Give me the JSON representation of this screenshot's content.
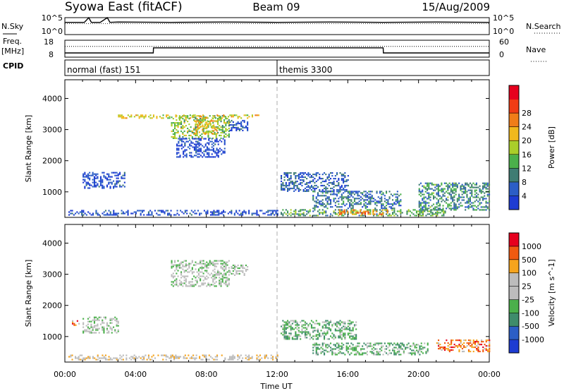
{
  "header": {
    "station": "Syowa East (fitACF)",
    "beam": "Beam 09",
    "date": "15/Aug/2009"
  },
  "panels": {
    "nsky": {
      "left_label": "N.Sky",
      "right_label": "N.Search",
      "tick_top": "10^5",
      "tick_bottom": "10^0"
    },
    "freq": {
      "left_label_line1": "Freq.",
      "left_label_line2": "[MHz]",
      "right_label": "Nave",
      "left_ticks": [
        "18",
        "8"
      ],
      "right_ticks": [
        "60",
        "0"
      ]
    },
    "cpid": {
      "label": "CPID",
      "segments": [
        {
          "time": 0,
          "text": "normal (fast) 151"
        },
        {
          "time": 12,
          "text": "themis 3300"
        }
      ]
    }
  },
  "x_axis": {
    "title": "Time UT",
    "tick_labels": [
      "00:00",
      "04:00",
      "08:00",
      "12:00",
      "16:00",
      "20:00",
      "00:00"
    ]
  },
  "colors": {
    "power": [
      "#1e3cd2",
      "#2c5ec6",
      "#3f7c73",
      "#4bb04b",
      "#aace2a",
      "#f0b81c",
      "#f07d18",
      "#f03c14",
      "#e6001e"
    ],
    "velocity": [
      "#e6001e",
      "#f05a10",
      "#f5a41e",
      "#bcbcbc",
      "#bcbcbc",
      "#4bb04b",
      "#3f8c6c",
      "#2c5ec6",
      "#1e3cd2"
    ],
    "grey_scatter": "#bcbcbc"
  },
  "chart_data": [
    {
      "type": "line",
      "name_panel": "N.Sky / N.Search",
      "x": [
        0,
        1.1,
        1.35,
        1.5,
        2.0,
        2.4,
        2.55,
        3.0,
        6.0,
        9.0,
        12.0,
        15.0,
        18.0,
        21.0,
        24.0
      ],
      "series": [
        {
          "name": "N.Sky",
          "values": [
            3.6,
            3.6,
            5.0,
            3.6,
            3.6,
            5.0,
            3.6,
            3.7,
            3.6,
            3.7,
            3.6,
            3.7,
            3.6,
            3.7,
            3.6
          ]
        },
        {
          "name": "N.Search",
          "values": [
            3.2,
            3.2,
            3.2,
            3.2,
            3.2,
            3.2,
            3.2,
            3.2,
            3.2,
            3.2,
            3.2,
            3.2,
            3.2,
            3.2,
            3.2
          ]
        }
      ],
      "ylim": [
        0,
        5
      ],
      "ylabel": "N.Sky"
    },
    {
      "type": "line",
      "name_panel": "Freq / Nave",
      "x": [
        0,
        5,
        5.01,
        18,
        18.01,
        24
      ],
      "series": [
        {
          "name": "Freq.",
          "values": [
            10.5,
            10.5,
            13.5,
            13.5,
            10.5,
            10.5
          ]
        },
        {
          "name": "Nave",
          "values": [
            38,
            38,
            38,
            38,
            38,
            38
          ]
        }
      ],
      "ylim": [
        8,
        18
      ],
      "ylabel": "Freq. [MHz]"
    },
    {
      "type": "heatmap",
      "name_panel": "Power",
      "colorbar_title": "Power [dB]",
      "colorbar_ticks": [
        4,
        8,
        12,
        16,
        20,
        24,
        28
      ],
      "clim": [
        0,
        32
      ],
      "ylabel": "Slant Range [km]",
      "yticks": [
        1000,
        2000,
        3000,
        4000
      ],
      "ylim": [
        180,
        4600
      ],
      "xlim": [
        0,
        24
      ],
      "regions": [
        {
          "t0": 6.0,
          "t1": 9.3,
          "r0": 2700,
          "r1": 3450,
          "level": 0.45
        },
        {
          "t0": 7.3,
          "t1": 8.6,
          "r0": 2850,
          "r1": 3300,
          "level": 0.62
        },
        {
          "t0": 9.3,
          "t1": 10.3,
          "r0": 2950,
          "r1": 3300,
          "level": 0.1
        },
        {
          "t0": 6.3,
          "t1": 9.0,
          "r0": 2100,
          "r1": 2700,
          "level": 0.08
        },
        {
          "t0": 1.0,
          "t1": 3.4,
          "r0": 1100,
          "r1": 1600,
          "level": 0.1
        },
        {
          "t0": 0.2,
          "t1": 12.0,
          "r0": 240,
          "r1": 420,
          "level": 0.1
        },
        {
          "t0": 12.2,
          "t1": 21.5,
          "r0": 220,
          "r1": 420,
          "level": 0.35
        },
        {
          "t0": 15.5,
          "t1": 18.5,
          "r0": 260,
          "r1": 420,
          "level": 0.7
        },
        {
          "t0": 12.2,
          "t1": 16.0,
          "r0": 1000,
          "r1": 1600,
          "level": 0.18
        },
        {
          "t0": 14.0,
          "t1": 19.0,
          "r0": 450,
          "r1": 1000,
          "level": 0.22
        },
        {
          "t0": 20.0,
          "t1": 24.0,
          "r0": 400,
          "r1": 1300,
          "level": 0.3
        },
        {
          "t0": 3.0,
          "t1": 11.0,
          "r0": 3350,
          "r1": 3480,
          "level": 0.55
        }
      ]
    },
    {
      "type": "heatmap",
      "name_panel": "Velocity",
      "colorbar_title": "Velocity [m s^-1]",
      "colorbar_ticks": [
        1000,
        500,
        100,
        25,
        -25,
        -100,
        -500,
        -1000
      ],
      "ylabel": "Slant Range [km]",
      "yticks": [
        1000,
        2000,
        3000,
        4000
      ],
      "ylim": [
        180,
        4600
      ],
      "xlim": [
        0,
        24
      ],
      "regions": [
        {
          "t0": 6.0,
          "t1": 9.3,
          "r0": 2600,
          "r1": 3450,
          "level": 0.5
        },
        {
          "t0": 9.3,
          "t1": 10.3,
          "r0": 2950,
          "r1": 3300,
          "level": 0.5
        },
        {
          "t0": 0.2,
          "t1": 12.0,
          "r0": 240,
          "r1": 420,
          "level": 0.4
        },
        {
          "t0": 1.0,
          "t1": 3.0,
          "r0": 1100,
          "r1": 1600,
          "level": 0.5
        },
        {
          "t0": 12.2,
          "t1": 16.5,
          "r0": 900,
          "r1": 1500,
          "level": 0.62
        },
        {
          "t0": 14.0,
          "t1": 20.5,
          "r0": 400,
          "r1": 800,
          "level": 0.62
        },
        {
          "t0": 21.0,
          "t1": 24.0,
          "r0": 500,
          "r1": 900,
          "level": 0.22
        },
        {
          "t0": 0.4,
          "t1": 0.8,
          "r0": 1300,
          "r1": 1500,
          "level": 0.2
        }
      ]
    }
  ]
}
